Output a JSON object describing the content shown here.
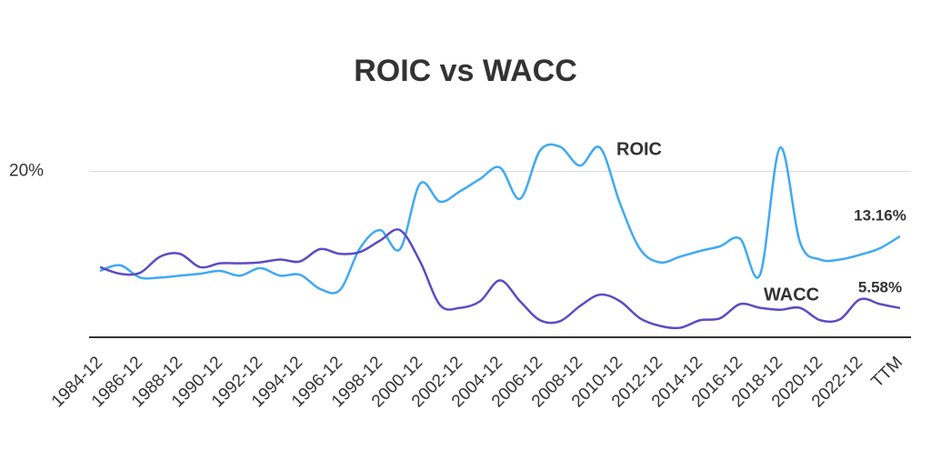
{
  "chart_data": {
    "type": "line",
    "title": "ROIC vs WACC",
    "categories": [
      "1984-12",
      null,
      "1986-12",
      null,
      "1988-12",
      null,
      "1990-12",
      null,
      "1992-12",
      null,
      "1994-12",
      null,
      "1996-12",
      null,
      "1998-12",
      null,
      "2000-12",
      null,
      "2002-12",
      null,
      "2004-12",
      null,
      "2006-12",
      null,
      "2008-12",
      null,
      "2010-12",
      null,
      "2012-12",
      null,
      "2014-12",
      null,
      "2016-12",
      null,
      "2018-12",
      null,
      "2020-12",
      null,
      "2022-12",
      null,
      "TTM"
    ],
    "series": [
      {
        "name": "ROIC",
        "color": "#3fa9f5",
        "values": [
          9.5,
          10.1,
          8.8,
          8.8,
          9.0,
          9.2,
          9.5,
          9.0,
          9.8,
          9.0,
          9.1,
          7.6,
          7.5,
          11.9,
          13.8,
          11.8,
          18.7,
          16.8,
          17.9,
          19.2,
          20.4,
          17.1,
          22.2,
          22.6,
          20.6,
          22.5,
          16.6,
          11.8,
          10.4,
          11.0,
          11.6,
          12.1,
          12.9,
          9.1,
          22.5,
          12.5,
          10.7,
          10.7,
          11.2,
          11.9,
          13.16
        ],
        "value_labels": [
          null,
          null,
          null,
          null,
          null,
          null,
          null,
          null,
          null,
          null,
          null,
          null,
          null,
          null,
          null,
          null,
          null,
          null,
          null,
          null,
          null,
          null,
          null,
          null,
          null,
          null,
          null,
          null,
          null,
          null,
          null,
          null,
          null,
          null,
          null,
          null,
          null,
          null,
          null,
          null,
          "13.16%"
        ]
      },
      {
        "name": "WACC",
        "color": "#5b4cc4",
        "values": [
          9.9,
          9.2,
          9.3,
          11.0,
          11.3,
          9.9,
          10.3,
          10.3,
          10.4,
          10.7,
          10.5,
          11.8,
          11.3,
          11.5,
          12.7,
          13.8,
          10.5,
          5.9,
          5.6,
          6.3,
          8.5,
          6.3,
          4.3,
          4.2,
          5.8,
          7.0,
          6.3,
          4.5,
          3.7,
          3.5,
          4.3,
          4.5,
          6.0,
          5.6,
          5.4,
          5.6,
          4.3,
          4.4,
          6.5,
          6.0,
          5.58
        ],
        "value_labels": [
          null,
          null,
          null,
          null,
          null,
          null,
          null,
          null,
          null,
          null,
          null,
          null,
          null,
          null,
          null,
          null,
          null,
          null,
          null,
          null,
          null,
          null,
          null,
          null,
          null,
          null,
          null,
          null,
          null,
          null,
          null,
          null,
          null,
          null,
          null,
          null,
          null,
          null,
          null,
          null,
          "5.58%"
        ]
      }
    ],
    "ylim": [
      2.5,
      23.5
    ],
    "yticks": [
      {
        "value": 20,
        "label": "20%"
      }
    ],
    "grid": true
  }
}
